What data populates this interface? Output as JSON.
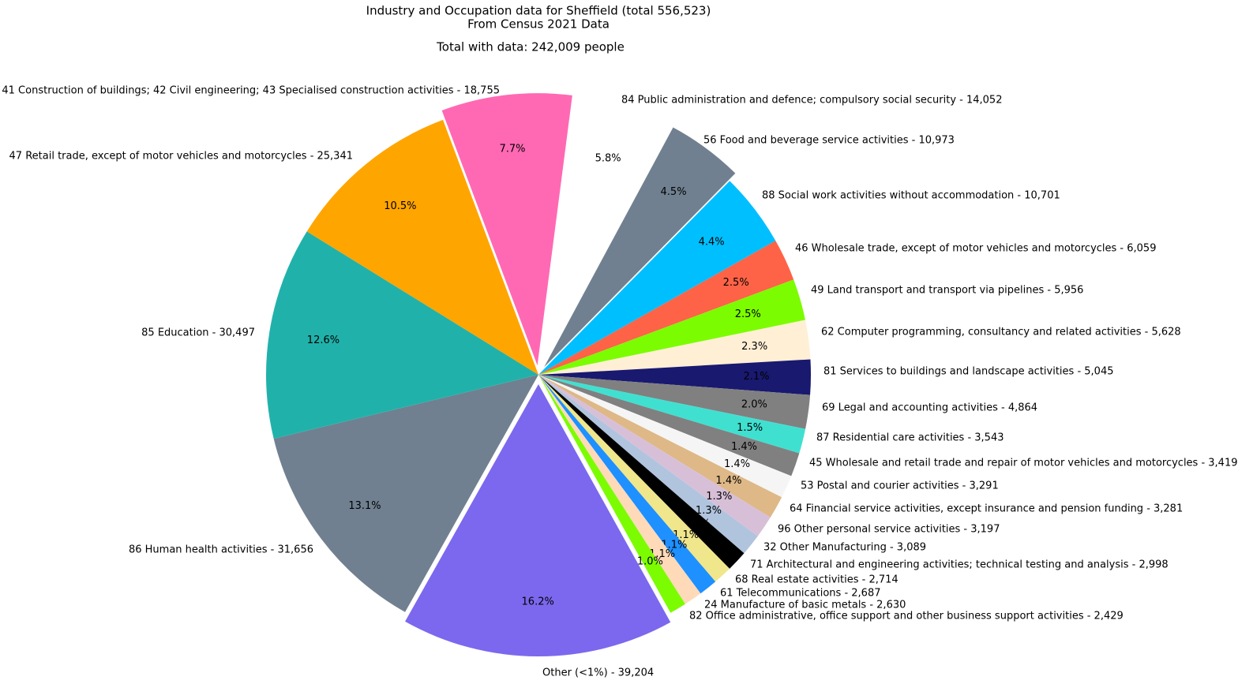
{
  "chart_data": {
    "type": "pie",
    "title": "Industry and Occupation data for Sheffield (total 556,523)",
    "subtitle": "From Census 2021 Data",
    "total_label": "Total with data: 242,009 people",
    "counterclockwise": false,
    "labels": [
      "Other (<1%) - 39,204",
      "86 Human health activities - 31,656",
      "85 Education - 30,497",
      "47 Retail trade, except of motor vehicles and motorcycles - 25,341",
      "41 Construction of buildings; 42 Civil engineering; 43 Specialised construction activities - 18,755",
      "84 Public administration and defence; compulsory social security - 14,052",
      "56 Food and beverage service activities - 10,973",
      "88 Social work activities without accommodation - 10,701",
      "46 Wholesale trade, except of motor vehicles and motorcycles - 6,059",
      "49 Land transport and transport via pipelines - 5,956",
      "62 Computer programming, consultancy and related activities - 5,628",
      "81 Services to buildings and landscape activities - 5,045",
      "69 Legal and accounting activities - 4,864",
      "87 Residential care activities - 3,543",
      "45 Wholesale and retail trade and repair of motor vehicles and motorcycles - 3,419",
      "53 Postal and courier activities - 3,291",
      "64 Financial service activities, except insurance and pension funding - 3,281",
      "96 Other personal service activities - 3,197",
      "32 Other Manufacturing - 3,089",
      "71 Architectural and engineering activities; technical testing and analysis - 2,998",
      "68 Real estate activities - 2,714",
      "61 Telecommunications - 2,687",
      "24 Manufacture of basic metals - 2,630",
      "82 Office administrative, office support and other business support activities - 2,429"
    ],
    "values": [
      39204,
      31656,
      30497,
      25341,
      18755,
      14052,
      10973,
      10701,
      6059,
      5956,
      5628,
      5045,
      4864,
      3543,
      3419,
      3291,
      3281,
      3197,
      3089,
      2998,
      2714,
      2687,
      2630,
      2429
    ],
    "percent_labels": [
      "16.2%",
      "13.1%",
      "12.6%",
      "10.5%",
      "7.7%",
      "5.8%",
      "4.5%",
      "4.4%",
      "2.5%",
      "2.5%",
      "2.3%",
      "2.1%",
      "2.0%",
      "1.5%",
      "1.4%",
      "1.4%",
      "1.4%",
      "1.3%",
      "1.3%",
      "1.2%",
      "1.1%",
      "1.1%",
      "1.1%",
      "1.0%"
    ],
    "colors": [
      "#7b68ee",
      "#708090",
      "#20b2aa",
      "#ffa500",
      "#ff69b4",
      "#ffffff",
      "#708090",
      "#00bfff",
      "#ff6347",
      "#7cfc00",
      "#ffefd5",
      "#191970",
      "#808080",
      "#40e0d0",
      "#808080",
      "#f5f5f5",
      "#deb887",
      "#d8bfd8",
      "#b0c4de",
      "#000000",
      "#f0e68c",
      "#1e90ff",
      "#ffdab9",
      "#7cfc00"
    ],
    "exploded": [
      true,
      false,
      false,
      false,
      true,
      true,
      true,
      false,
      false,
      false,
      false,
      false,
      false,
      false,
      false,
      false,
      false,
      false,
      false,
      false,
      false,
      false,
      false,
      false
    ]
  }
}
